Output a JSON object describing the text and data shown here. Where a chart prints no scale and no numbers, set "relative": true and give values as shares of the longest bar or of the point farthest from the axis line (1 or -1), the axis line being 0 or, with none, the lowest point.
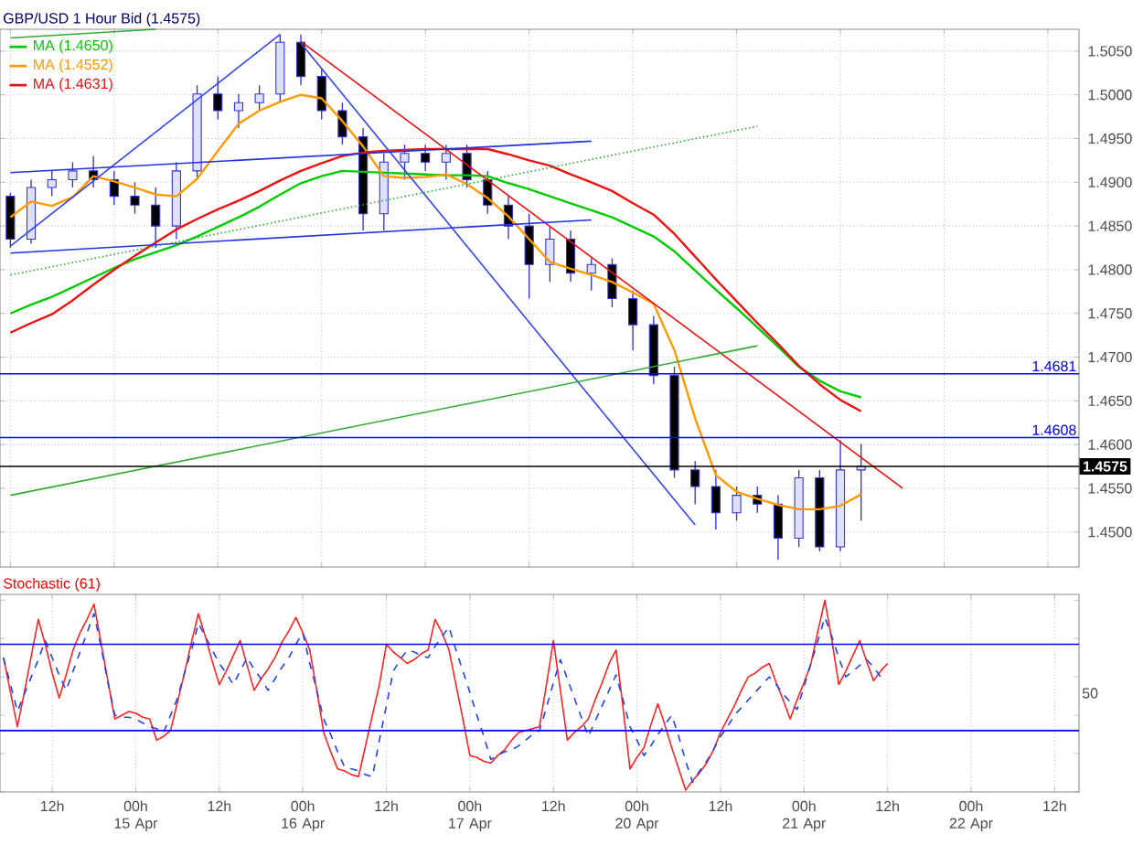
{
  "chart_data": [
    {
      "type": "candlestick",
      "title": "GBP/USD 1 Hour Bid (1.4575)",
      "color": "#3333cc",
      "legend": "top left",
      "grid": true,
      "tick_labels": "y",
      "categories": [
        null,
        null,
        null,
        null,
        null,
        null,
        null,
        null,
        null,
        null,
        null,
        null,
        null,
        null,
        null,
        null,
        null,
        null,
        null,
        null,
        null,
        null,
        null,
        null,
        null,
        null,
        null,
        null,
        null,
        null,
        null,
        null,
        null,
        null,
        null,
        null,
        null,
        null,
        null,
        null,
        null,
        null,
        null,
        null,
        null,
        null,
        null,
        null,
        null,
        null,
        null,
        null
      ],
      "ohlc": [
        [
          1.4884,
          1.4888,
          1.4825,
          1.4835
        ],
        [
          1.4835,
          1.4903,
          1.483,
          1.4894
        ],
        [
          1.4894,
          1.4913,
          1.4884,
          1.4903
        ],
        [
          1.4903,
          1.4923,
          1.4894,
          1.4913
        ],
        [
          1.4913,
          1.493,
          1.4894,
          1.4903
        ],
        [
          1.4903,
          1.4913,
          1.4874,
          1.4884
        ],
        [
          1.4884,
          1.49,
          1.4864,
          1.4874
        ],
        [
          1.4874,
          1.4894,
          1.4825,
          1.485
        ],
        [
          1.485,
          1.4923,
          1.4835,
          1.4913
        ],
        [
          1.4913,
          1.5011,
          1.4903,
          1.5001
        ],
        [
          1.5001,
          1.5021,
          1.4972,
          1.4982
        ],
        [
          1.4982,
          1.5001,
          1.4962,
          1.4991
        ],
        [
          1.4991,
          1.5011,
          1.4982,
          1.5001
        ],
        [
          1.5001,
          1.5069,
          1.4991,
          1.506
        ],
        [
          1.506,
          1.5069,
          1.5011,
          1.5021
        ],
        [
          1.5021,
          1.503,
          1.4972,
          1.4982
        ],
        [
          1.4982,
          1.4991,
          1.4943,
          1.4952
        ],
        [
          1.4952,
          1.4962,
          1.4845,
          1.4864
        ],
        [
          1.4864,
          1.4933,
          1.4845,
          1.4923
        ],
        [
          1.4923,
          1.4943,
          1.4903,
          1.4933
        ],
        [
          1.4933,
          1.4943,
          1.4913,
          1.4923
        ],
        [
          1.4923,
          1.4943,
          1.4903,
          1.4933
        ],
        [
          1.4933,
          1.4943,
          1.4894,
          1.4903
        ],
        [
          1.4903,
          1.4913,
          1.4864,
          1.4874
        ],
        [
          1.4874,
          1.4884,
          1.4835,
          1.485
        ],
        [
          1.485,
          1.4864,
          1.4767,
          1.4806
        ],
        [
          1.4806,
          1.485,
          1.4786,
          1.4835
        ],
        [
          1.4835,
          1.4845,
          1.4786,
          1.4796
        ],
        [
          1.4796,
          1.4813,
          1.4776,
          1.4806
        ],
        [
          1.4806,
          1.4813,
          1.4757,
          1.4767
        ],
        [
          1.4767,
          1.4776,
          1.4708,
          1.4737
        ],
        [
          1.4737,
          1.4747,
          1.4669,
          1.4679
        ],
        [
          1.4679,
          1.4689,
          1.4562,
          1.4571
        ],
        [
          1.4571,
          1.4581,
          1.4532,
          1.4552
        ],
        [
          1.4552,
          1.4571,
          1.4503,
          1.4522
        ],
        [
          1.4522,
          1.4552,
          1.4513,
          1.4542
        ],
        [
          1.4542,
          1.4552,
          1.4522,
          1.4532
        ],
        [
          1.4532,
          1.4542,
          1.4468,
          1.4493
        ],
        [
          1.4493,
          1.4571,
          1.4483,
          1.4562
        ],
        [
          1.4562,
          1.4571,
          1.4478,
          1.4483
        ],
        [
          1.4483,
          1.4605,
          1.4478,
          1.4571
        ],
        [
          1.4571,
          1.4601,
          1.4513,
          1.4575
        ],
        null,
        null,
        null,
        null,
        null,
        null,
        null,
        null,
        null,
        null
      ],
      "colors": [
        "#000000",
        "#dde0ff",
        "#dde0ff",
        "#dde0ff",
        "#000000",
        "#000000",
        "#000000",
        "#000000",
        "#dde0ff",
        "#dde0ff",
        "#000000",
        "#dde0ff",
        "#dde0ff",
        "#dde0ff",
        "#000000",
        "#000000",
        "#000000",
        "#000000",
        "#dde0ff",
        "#dde0ff",
        "#000000",
        "#dde0ff",
        "#000000",
        "#000000",
        "#000000",
        "#000000",
        "#dde0ff",
        "#000000",
        "#dde0ff",
        "#000000",
        "#000000",
        "#000000",
        "#000000",
        "#000000",
        "#000000",
        "#dde0ff",
        "#000000",
        "#000000",
        "#dde0ff",
        "#000000",
        "#dde0ff",
        "#dde0ff",
        null,
        null,
        null,
        null,
        null,
        null,
        null,
        null,
        null,
        null
      ],
      "series": [
        {
          "type": "line",
          "name": "MA (1.4650)",
          "color": "#00cc00",
          "values": [
            1.475,
            1.476,
            1.4769,
            1.478,
            1.4791,
            1.4802,
            1.4812,
            1.482,
            1.4828,
            1.4838,
            1.4849,
            1.486,
            1.4872,
            1.4886,
            1.4899,
            1.4907,
            1.4913,
            1.4912,
            1.4911,
            1.491,
            1.4909,
            1.4908,
            1.4908,
            1.4907,
            1.4899,
            1.4892,
            1.4884,
            1.4876,
            1.4868,
            1.486,
            1.4849,
            1.4838,
            1.4821,
            1.4799,
            1.4777,
            1.4756,
            1.4734,
            1.4712,
            1.4689,
            1.4673,
            1.4661,
            1.4654,
            null,
            null,
            null,
            null,
            null,
            null,
            null,
            null,
            null,
            null
          ]
        },
        {
          "type": "line",
          "name": "MA (1.4552)",
          "color": "#ff9900",
          "values": [
            1.486,
            1.4878,
            1.4873,
            1.4883,
            1.4907,
            1.4901,
            1.4894,
            1.4886,
            1.4884,
            1.4904,
            1.4936,
            1.4967,
            1.4982,
            1.4992,
            1.5,
            1.4996,
            1.497,
            1.4941,
            1.4907,
            1.4905,
            1.4906,
            1.4909,
            1.4898,
            1.4882,
            1.4861,
            1.4835,
            1.4809,
            1.4801,
            1.4794,
            1.4786,
            1.4774,
            1.4761,
            1.4708,
            1.463,
            1.4565,
            1.4546,
            1.4538,
            1.4531,
            1.4526,
            1.4526,
            1.453,
            1.4543,
            null,
            null,
            null,
            null,
            null,
            null,
            null,
            null,
            null,
            null
          ]
        },
        {
          "type": "line",
          "name": "MA (1.4631)",
          "color": "#ee1111",
          "values": [
            1.4728,
            1.4739,
            1.4749,
            1.4765,
            1.4783,
            1.48,
            1.4816,
            1.4831,
            1.4846,
            1.4858,
            1.4869,
            1.4879,
            1.489,
            1.4902,
            1.4913,
            1.4922,
            1.493,
            1.4934,
            1.4936,
            1.4937,
            1.4938,
            1.4938,
            1.4938,
            1.4938,
            1.4932,
            1.4925,
            1.4919,
            1.4909,
            1.49,
            1.489,
            1.4876,
            1.4863,
            1.4841,
            1.4815,
            1.4789,
            1.4764,
            1.4739,
            1.4715,
            1.469,
            1.4669,
            1.4651,
            1.4638,
            null,
            null,
            null,
            null,
            null,
            null,
            null,
            null,
            null,
            null
          ]
        },
        {
          "type": "line",
          "color": "#ee1111",
          "values": [
            null,
            null,
            null,
            null,
            null,
            null,
            null,
            null,
            null,
            null,
            null,
            null,
            null,
            null,
            1.5061,
            null,
            null,
            null,
            null,
            null,
            null,
            null,
            null,
            null,
            null,
            null,
            null,
            null,
            null,
            null,
            null,
            null,
            null,
            null,
            null,
            null,
            null,
            null,
            null,
            null,
            null,
            null,
            null,
            1.455,
            null,
            null,
            null,
            null,
            null,
            null,
            null,
            null
          ]
        },
        {
          "type": "line",
          "color": "#3344ee",
          "values": [
            1.4827,
            null,
            null,
            null,
            null,
            null,
            null,
            null,
            null,
            null,
            null,
            null,
            null,
            1.5069,
            null,
            null,
            null,
            null,
            null,
            null,
            null,
            null,
            null,
            null,
            null,
            null,
            null,
            null,
            null,
            null,
            null,
            null,
            null,
            null,
            null,
            null,
            null,
            null,
            null,
            null,
            null,
            null,
            null,
            null,
            null,
            null,
            null,
            null,
            null,
            null,
            null,
            null
          ]
        },
        {
          "type": "line",
          "color": "#3344ee",
          "values": [
            null,
            null,
            null,
            null,
            null,
            null,
            null,
            null,
            null,
            null,
            null,
            null,
            null,
            null,
            1.5059,
            null,
            null,
            null,
            null,
            null,
            null,
            null,
            null,
            null,
            null,
            null,
            null,
            null,
            null,
            null,
            null,
            null,
            null,
            1.4508,
            null,
            null,
            null,
            null,
            null,
            null,
            null,
            null,
            null,
            null,
            null,
            null,
            null,
            null,
            null,
            null,
            null,
            null
          ]
        },
        {
          "type": "line",
          "color": "#2233dd",
          "values": [
            1.4911,
            null,
            null,
            null,
            null,
            null,
            null,
            null,
            null,
            null,
            null,
            null,
            null,
            null,
            null,
            null,
            null,
            null,
            null,
            null,
            null,
            null,
            null,
            null,
            null,
            null,
            null,
            null,
            1.4947,
            null,
            null,
            null,
            null,
            null,
            null,
            null,
            null,
            null,
            null,
            null,
            null,
            null,
            null,
            null,
            null,
            null,
            null,
            null,
            null,
            null,
            null,
            null
          ]
        },
        {
          "type": "line",
          "color": "#2233dd",
          "values": [
            1.4819,
            null,
            null,
            null,
            null,
            null,
            null,
            null,
            null,
            null,
            null,
            null,
            null,
            null,
            null,
            null,
            null,
            null,
            null,
            null,
            null,
            null,
            null,
            null,
            null,
            null,
            null,
            null,
            1.4857,
            null,
            null,
            null,
            null,
            null,
            null,
            null,
            null,
            null,
            null,
            null,
            null,
            null,
            null,
            null,
            null,
            null,
            null,
            null,
            null,
            null,
            null,
            null
          ]
        },
        {
          "type": "line",
          "color": "#33aa33",
          "line_style": "dotted",
          "values": [
            1.4794,
            null,
            null,
            null,
            null,
            null,
            null,
            null,
            null,
            null,
            null,
            null,
            null,
            null,
            null,
            null,
            null,
            null,
            null,
            null,
            null,
            null,
            null,
            null,
            null,
            null,
            null,
            null,
            null,
            null,
            null,
            null,
            null,
            null,
            null,
            null,
            1.4964,
            null,
            null,
            null,
            null,
            null,
            null,
            null,
            null,
            null,
            null,
            null,
            null,
            null,
            null,
            null
          ]
        },
        {
          "type": "line",
          "color": "#33aa33",
          "values": [
            1.4542,
            null,
            null,
            null,
            null,
            null,
            null,
            null,
            null,
            null,
            null,
            null,
            null,
            null,
            null,
            null,
            null,
            null,
            null,
            null,
            null,
            null,
            null,
            null,
            null,
            null,
            null,
            null,
            null,
            null,
            null,
            null,
            null,
            null,
            null,
            null,
            1.4713,
            null,
            null,
            null,
            null,
            null,
            null,
            null,
            null,
            null,
            null,
            null,
            null,
            null,
            null,
            null
          ]
        },
        {
          "type": "line",
          "color": "#33aa33",
          "values": [
            1.5065,
            null,
            null,
            null,
            null,
            null,
            null,
            1.5075,
            null,
            null,
            null,
            null,
            null,
            null,
            null,
            null,
            null,
            null,
            null,
            null,
            null,
            null,
            null,
            null,
            null,
            null,
            null,
            null,
            null,
            null,
            null,
            null,
            null,
            null,
            null,
            null,
            null,
            null,
            null,
            null,
            null,
            null,
            null,
            null,
            null,
            null,
            null,
            null,
            null,
            null,
            null,
            null
          ]
        }
      ],
      "ylim": [
        1.446,
        1.5075
      ],
      "yticks": [
        {
          "value": 1.45,
          "label": "1.4500"
        },
        {
          "value": 1.455,
          "label": "1.4550"
        },
        {
          "value": 1.46,
          "label": "1.4600"
        },
        {
          "value": 1.465,
          "label": "1.4650"
        },
        {
          "value": 1.47,
          "label": "1.4700"
        },
        {
          "value": 1.475,
          "label": "1.4750"
        },
        {
          "value": 1.48,
          "label": "1.4800"
        },
        {
          "value": 1.485,
          "label": "1.4850"
        },
        {
          "value": 1.49,
          "label": "1.4900"
        },
        {
          "value": 1.495,
          "label": "1.4950"
        },
        {
          "value": 1.5,
          "label": "1.5000"
        },
        {
          "value": 1.505,
          "label": "1.5050"
        }
      ],
      "ref_lines": [
        {
          "axis": "y",
          "value": 1.4681,
          "label": "1.4681",
          "color": "#0000ee"
        },
        {
          "axis": "y",
          "value": 1.4608,
          "label": "1.4608",
          "color": "#0000ee"
        },
        {
          "axis": "y",
          "value": 1.4575,
          "label": "1.4575",
          "color": "#000000"
        }
      ]
    },
    {
      "type": "line",
      "title": "Stochastic (61)",
      "grid": "x",
      "relative": true,
      "annotations": [
        "50"
      ],
      "categories": [
        null,
        null,
        null,
        null,
        null,
        null,
        null,
        "12h",
        null,
        null,
        null,
        null,
        null,
        null,
        null,
        null,
        null,
        null,
        null,
        "00h 15 Apr",
        null,
        null,
        null,
        null,
        null,
        null,
        null,
        null,
        null,
        null,
        null,
        "12h",
        null,
        null,
        null,
        null,
        null,
        null,
        null,
        null,
        null,
        null,
        null,
        "00h 16 Apr",
        null,
        null,
        null,
        null,
        null,
        null,
        null,
        null,
        null,
        null,
        null,
        "12h",
        null,
        null,
        null,
        null,
        null,
        null,
        null,
        null,
        null,
        null,
        null,
        "00h 17 Apr",
        null,
        null,
        null,
        null,
        null,
        null,
        null,
        null,
        null,
        null,
        null,
        "12h",
        null,
        null,
        null,
        null,
        null,
        null,
        null,
        null,
        null,
        null,
        null,
        "00h 20 Apr",
        null,
        null,
        null,
        null,
        null,
        null,
        null,
        null,
        null,
        null,
        null,
        "12h",
        null,
        null,
        null,
        null,
        null,
        null,
        null,
        null,
        null,
        null,
        null,
        "00h 21 Apr",
        null,
        null,
        null,
        null,
        null,
        null,
        null,
        null,
        null,
        null,
        null,
        "12h",
        null,
        null,
        null,
        null,
        null,
        null,
        null,
        null,
        null,
        null,
        null,
        "00h 22 Apr",
        null,
        null,
        null,
        null,
        null,
        null,
        null,
        null,
        null,
        null,
        null,
        "12h",
        null,
        null,
        null
      ],
      "series": [
        {
          "color": "#ff2222",
          "values": [
            0.7,
            0.52,
            0.34,
            0.52,
            0.71,
            0.9,
            0.77,
            0.62,
            0.49,
            0.61,
            0.74,
            0.83,
            0.9,
            0.98,
            0.78,
            0.58,
            0.38,
            0.4,
            0.42,
            0.41,
            0.39,
            0.38,
            0.27,
            0.29,
            0.32,
            0.47,
            0.62,
            0.78,
            0.93,
            0.81,
            0.68,
            0.56,
            0.63,
            0.71,
            0.79,
            0.66,
            0.53,
            0.59,
            0.64,
            0.7,
            0.78,
            0.84,
            0.91,
            0.83,
            0.74,
            0.53,
            0.31,
            0.21,
            0.12,
            0.11,
            0.09,
            0.08,
            0.24,
            0.4,
            0.56,
            0.77,
            0.73,
            0.7,
            0.67,
            0.69,
            0.72,
            0.74,
            0.9,
            0.83,
            0.74,
            0.56,
            0.38,
            0.19,
            0.18,
            0.16,
            0.15,
            0.19,
            0.22,
            0.27,
            0.31,
            0.32,
            0.33,
            0.34,
            0.56,
            0.79,
            0.53,
            0.27,
            0.31,
            0.34,
            0.38,
            0.48,
            0.57,
            0.67,
            0.74,
            0.44,
            0.12,
            0.18,
            0.23,
            0.35,
            0.46,
            0.35,
            0.23,
            0.12,
            0.01,
            0.06,
            0.1,
            0.15,
            0.22,
            0.31,
            0.38,
            0.45,
            0.53,
            0.6,
            0.62,
            0.65,
            0.67,
            0.57,
            0.48,
            0.38,
            0.48,
            0.57,
            0.67,
            0.84,
            1,
            0.79,
            0.56,
            0.63,
            0.71,
            0.79,
            0.68,
            0.58,
            0.63,
            0.67,
            null,
            null,
            null,
            null,
            null,
            null,
            null,
            null,
            null,
            null,
            null,
            null,
            null,
            null,
            null,
            null,
            null,
            null,
            null,
            null,
            null,
            null,
            null,
            null,
            null,
            null,
            null
          ]
        },
        {
          "color": "#2244ee",
          "line_style": "dashed",
          "values": [
            0.7,
            0.56,
            0.42,
            0.51,
            0.6,
            0.69,
            0.79,
            0.7,
            0.61,
            0.53,
            0.63,
            0.73,
            0.83,
            0.93,
            0.76,
            0.57,
            0.4,
            0.39,
            0.39,
            0.38,
            0.36,
            0.34,
            0.33,
            0.31,
            0.4,
            0.49,
            0.62,
            0.74,
            0.88,
            0.81,
            0.74,
            0.67,
            0.62,
            0.56,
            0.63,
            0.7,
            0.64,
            0.59,
            0.53,
            0.59,
            0.65,
            0.7,
            0.77,
            0.83,
            0.67,
            0.53,
            0.38,
            0.3,
            0.21,
            0.13,
            0.12,
            0.11,
            0.09,
            0.08,
            0.27,
            0.45,
            0.63,
            0.69,
            0.74,
            0.73,
            0.71,
            0.7,
            0.76,
            0.81,
            0.86,
            0.74,
            0.63,
            0.52,
            0.4,
            0.29,
            0.17,
            0.19,
            0.21,
            0.22,
            0.24,
            0.27,
            0.3,
            0.32,
            0.44,
            0.57,
            0.69,
            0.59,
            0.49,
            0.39,
            0.29,
            0.37,
            0.45,
            0.53,
            0.61,
            0.48,
            0.34,
            0.27,
            0.19,
            0.24,
            0.3,
            0.35,
            0.4,
            0.29,
            0.16,
            0.05,
            0.11,
            0.16,
            0.22,
            0.29,
            0.34,
            0.4,
            0.44,
            0.48,
            0.52,
            0.56,
            0.6,
            0.56,
            0.51,
            0.47,
            0.43,
            0.55,
            0.67,
            0.79,
            0.91,
            0.81,
            0.7,
            0.6,
            0.63,
            0.66,
            0.69,
            0.65,
            0.6,
            null,
            null,
            null,
            null,
            null,
            null,
            null,
            null,
            null,
            null,
            null,
            null,
            null,
            null,
            null,
            null,
            null,
            null,
            null,
            null,
            null,
            null,
            null,
            null,
            null,
            null,
            null,
            null
          ]
        }
      ],
      "ref_lines": [
        {
          "axis": "y",
          "value": 0.77,
          "color": "#0000ee"
        },
        {
          "axis": "y",
          "value": 0.32,
          "color": "#0000ee"
        }
      ]
    }
  ]
}
